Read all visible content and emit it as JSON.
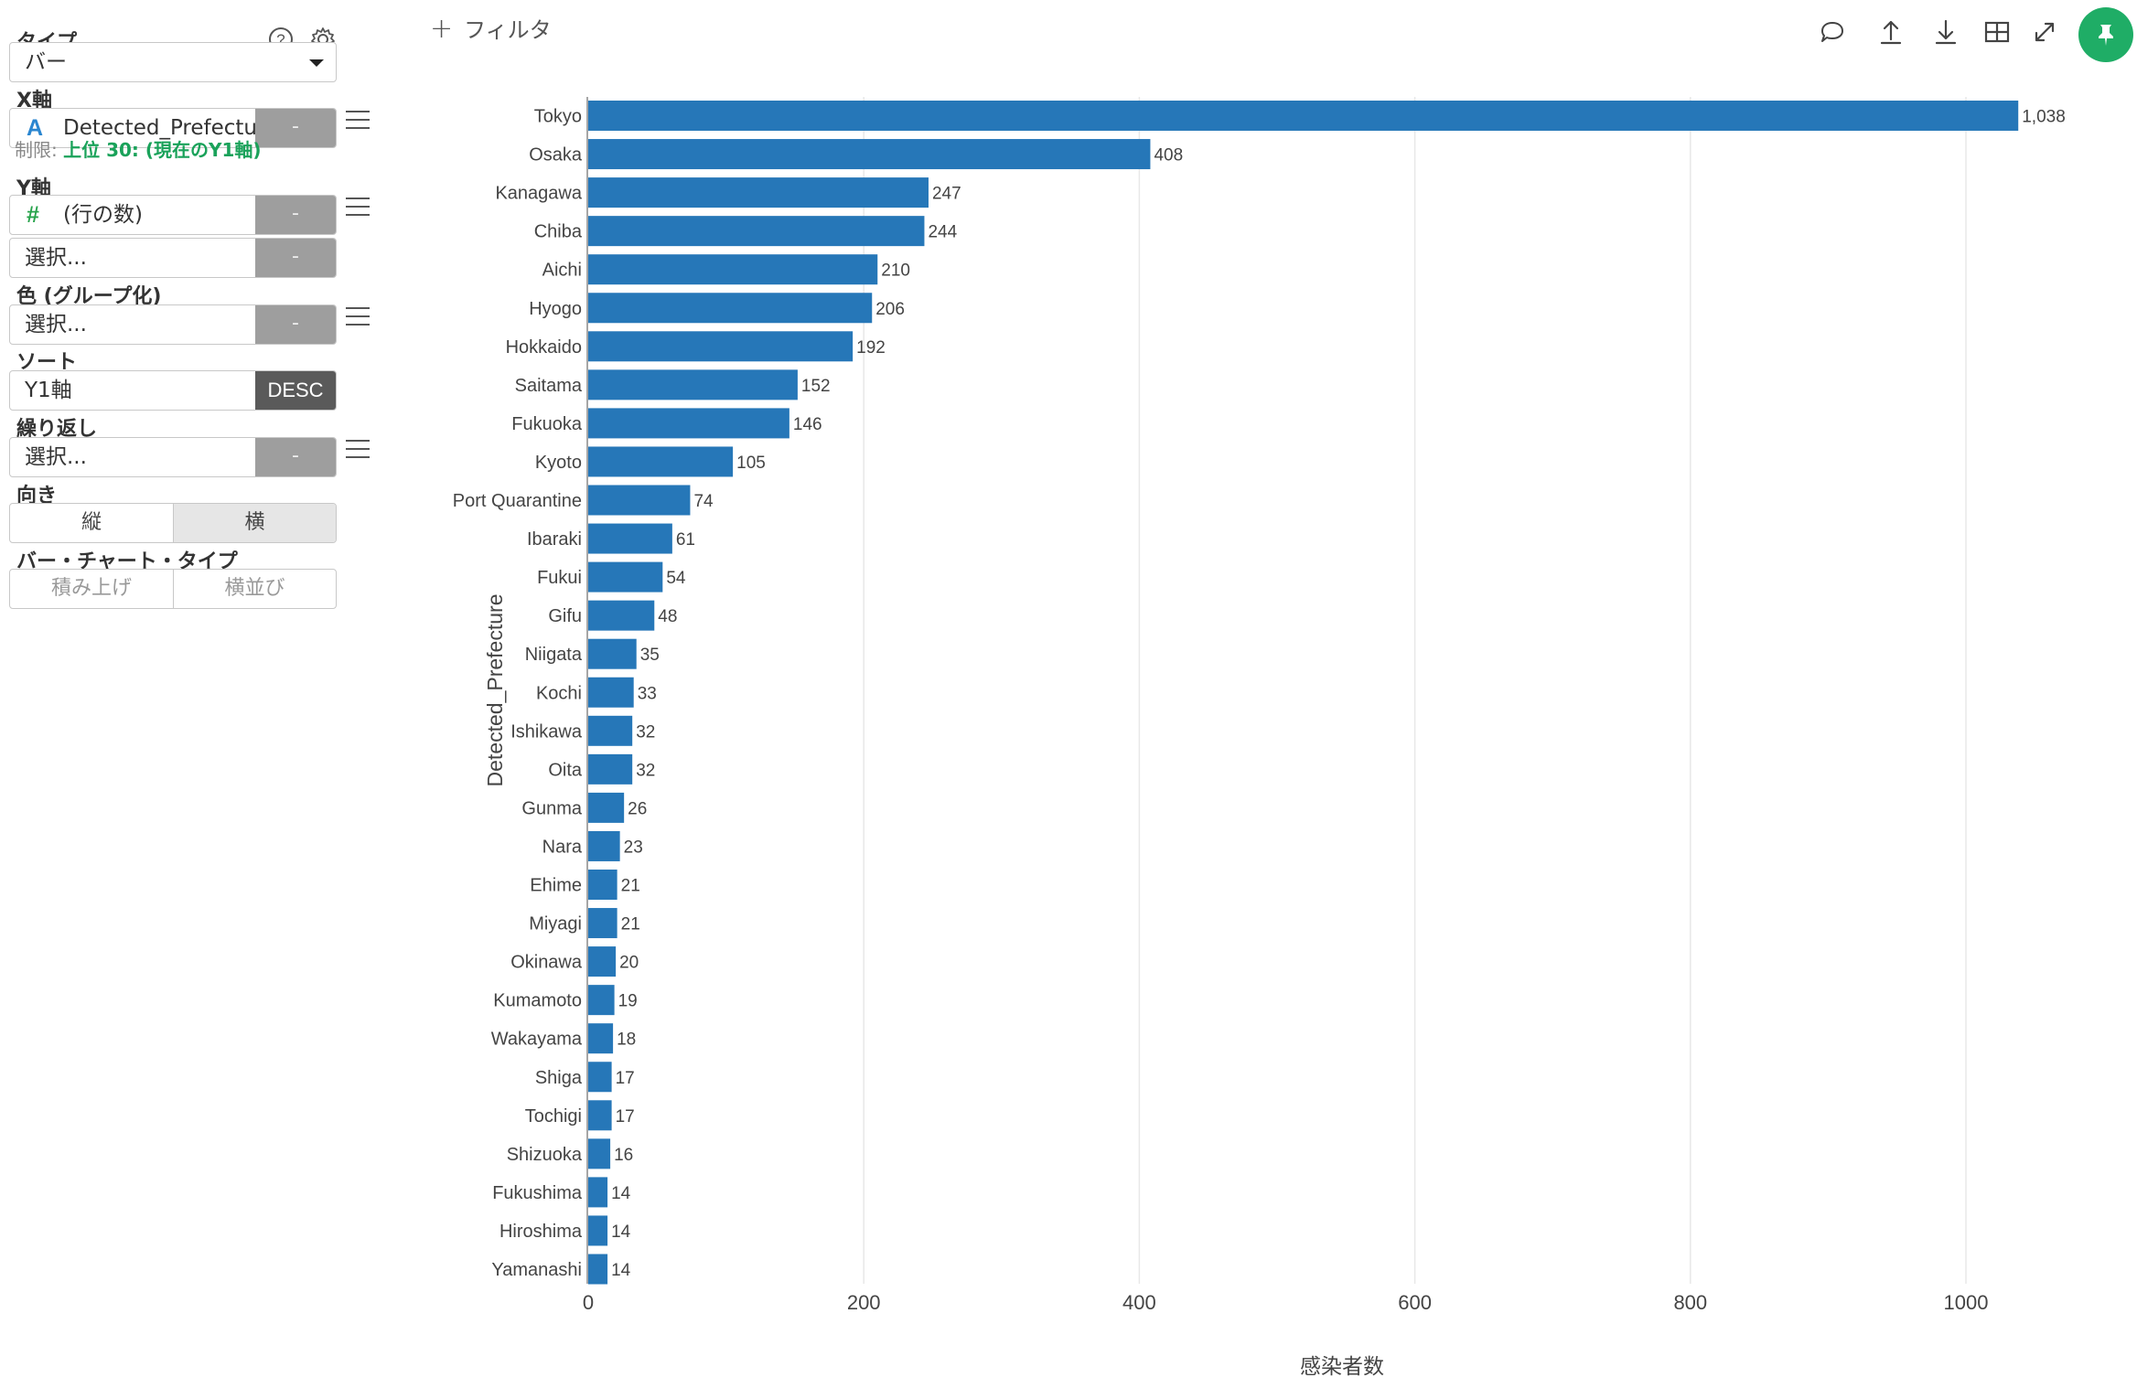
{
  "panel": {
    "type_label": "タイプ",
    "type_value": "バー",
    "x_axis_label": "X軸",
    "x_field_type_icon": "A",
    "x_field": "Detected_Prefectur",
    "minus_label": "-",
    "limit_prefix": "制限:",
    "limit_value": "上位 30: (現在のY1軸)",
    "y_axis_label": "Y軸",
    "y_field_type_icon": "#",
    "y_field": "(行の数)",
    "select_placeholder": "選択...",
    "color_label": "色 (グループ化)",
    "sort_label": "ソート",
    "sort_field": "Y1軸",
    "sort_order": "DESC",
    "repeat_label": "繰り返し",
    "orientation_label": "向き",
    "orientation_options": [
      "縦",
      "横"
    ],
    "orientation_selected": "横",
    "bar_type_label": "バー・チャート・タイプ",
    "bar_type_options": [
      "積み上げ",
      "横並び"
    ]
  },
  "toolbar": {
    "filter_label": "フィルタ",
    "icons": [
      "comment-icon",
      "upload-icon",
      "download-icon",
      "table-icon",
      "expand-icon",
      "pin-icon"
    ],
    "accent_color": "#1fad66"
  },
  "chart_data": {
    "type": "bar",
    "orientation": "horizontal",
    "bar_color": "#2677b8",
    "categories": [
      "Tokyo",
      "Osaka",
      "Kanagawa",
      "Chiba",
      "Aichi",
      "Hyogo",
      "Hokkaido",
      "Saitama",
      "Fukuoka",
      "Kyoto",
      "Port Quarantine",
      "Ibaraki",
      "Fukui",
      "Gifu",
      "Niigata",
      "Kochi",
      "Ishikawa",
      "Oita",
      "Gunma",
      "Nara",
      "Ehime",
      "Miyagi",
      "Okinawa",
      "Kumamoto",
      "Wakayama",
      "Shiga",
      "Tochigi",
      "Shizuoka",
      "Fukushima",
      "Hiroshima",
      "Yamanashi"
    ],
    "values": [
      1038,
      408,
      247,
      244,
      210,
      206,
      192,
      152,
      146,
      105,
      74,
      61,
      54,
      48,
      35,
      33,
      32,
      32,
      26,
      23,
      21,
      21,
      20,
      19,
      18,
      17,
      17,
      16,
      14,
      14,
      14
    ],
    "value_labels": [
      "1,038",
      "408",
      "247",
      "244",
      "210",
      "206",
      "192",
      "152",
      "146",
      "105",
      "74",
      "61",
      "54",
      "48",
      "35",
      "33",
      "32",
      "32",
      "26",
      "23",
      "21",
      "21",
      "20",
      "19",
      "18",
      "17",
      "17",
      "16",
      "14",
      "14",
      "14"
    ],
    "xlabel": "感染者数",
    "ylabel": "Detected_Prefecture",
    "xlim": [
      0,
      1100
    ],
    "xticks": [
      0,
      200,
      400,
      600,
      800,
      1000
    ],
    "grid": true
  }
}
